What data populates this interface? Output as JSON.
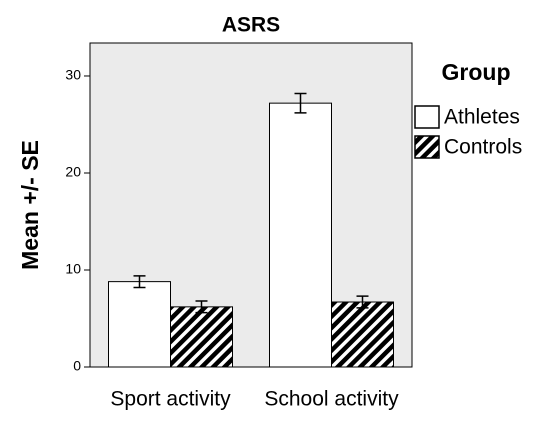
{
  "chart_data": {
    "type": "bar",
    "title": "ASRS",
    "y_label": "Mean +/- SE",
    "categories": [
      "Sport activity",
      "School activity"
    ],
    "legend_title": "Group",
    "series": [
      {
        "name": "Athletes",
        "color": "#ffffff",
        "hatch": false,
        "values": [
          8.8,
          27.2
        ],
        "errors": [
          0.6,
          1.0
        ]
      },
      {
        "name": "Controls",
        "color": "#000000",
        "hatch": true,
        "values": [
          6.2,
          6.7
        ],
        "errors": [
          0.6,
          0.6
        ]
      }
    ],
    "ylim": [
      0,
      33.4
    ],
    "yticks": [
      0,
      10,
      20,
      30
    ],
    "grid": false
  }
}
